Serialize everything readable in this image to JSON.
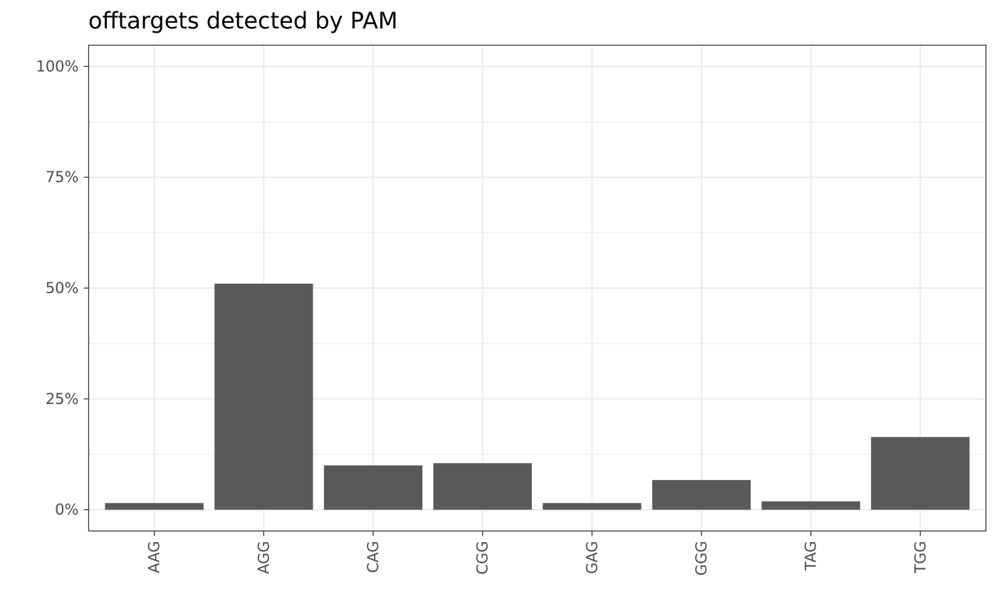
{
  "chart_data": {
    "type": "bar",
    "title": "offtargets detected by PAM",
    "xlabel": "",
    "ylabel": "",
    "categories": [
      "AAG",
      "AGG",
      "CAG",
      "CGG",
      "GAG",
      "GGG",
      "TAG",
      "TGG"
    ],
    "values": [
      1.5,
      51.0,
      10.0,
      10.5,
      1.5,
      6.7,
      1.9,
      16.4
    ],
    "value_unit": "percent",
    "ylim": [
      -4.8,
      104.8
    ],
    "yticks": [
      0,
      25,
      50,
      75,
      100
    ],
    "ytick_labels": [
      "0%",
      "25%",
      "50%",
      "75%",
      "100%"
    ],
    "grid": true,
    "bar_color": "#595959",
    "grid_color": "#ebebeb",
    "theme": "bw"
  }
}
